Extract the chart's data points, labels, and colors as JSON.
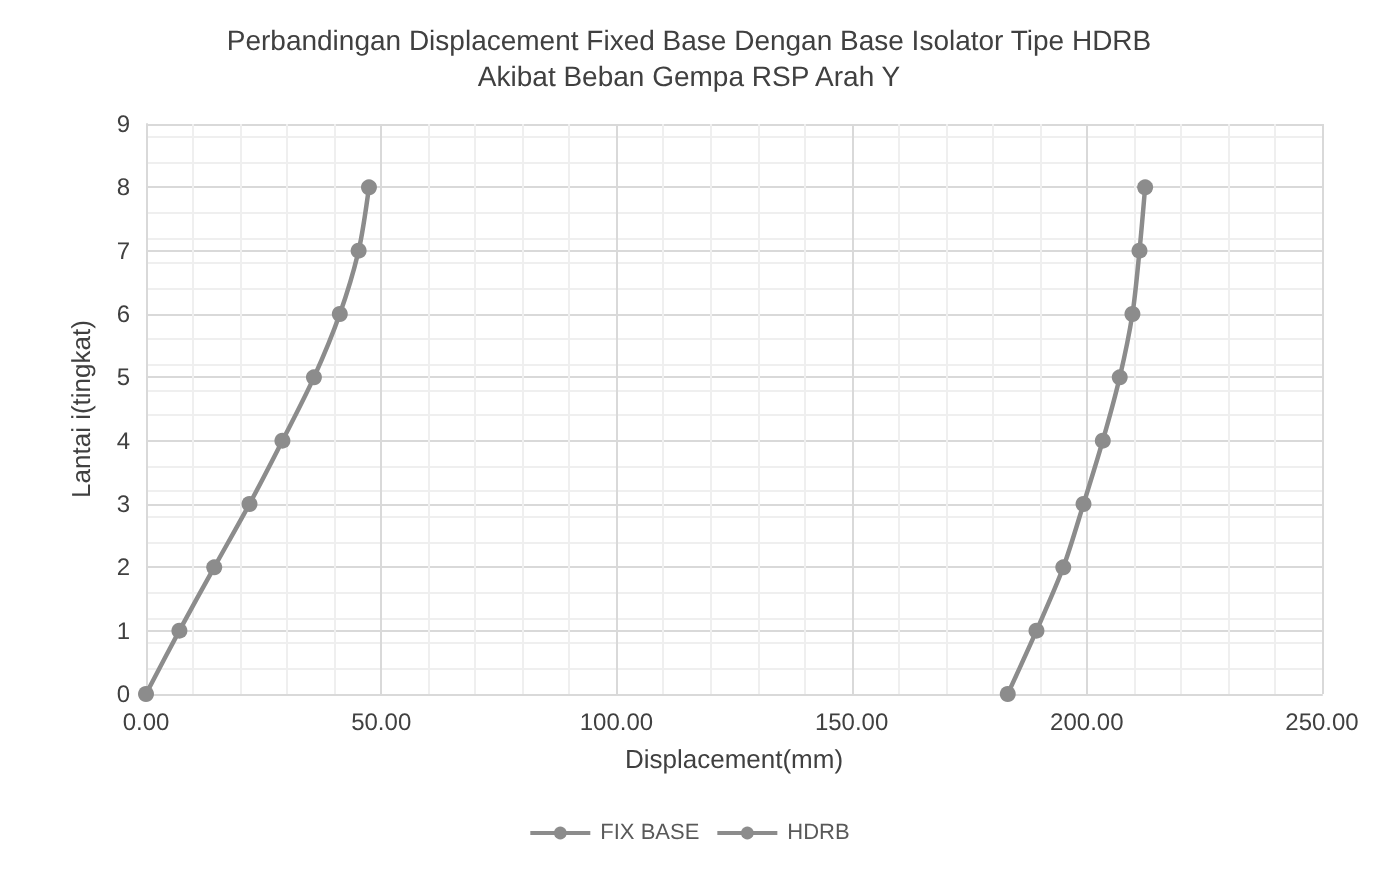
{
  "chart_data": {
    "type": "line",
    "title": "Perbandingan Displacement Fixed Base Dengan Base Isolator Tipe HDRB",
    "subtitle": "Akibat Beban Gempa RSP Arah Y",
    "xlabel": "Displacement(mm)",
    "ylabel": "Lantai i(tingkat)",
    "series": [
      {
        "name": "FIX BASE",
        "color": "#8c8c8c",
        "x": [
          0,
          7.1,
          14.5,
          22,
          29,
          35.7,
          41.2,
          45.2,
          47.4
        ],
        "values": [
          0,
          1,
          2,
          3,
          4,
          5,
          6,
          7,
          8
        ]
      },
      {
        "name": "HDRB",
        "color": "#8c8c8c",
        "x": [
          183.2,
          189.3,
          195,
          199.3,
          203.4,
          207,
          209.7,
          211.2,
          212.4
        ],
        "values": [
          0,
          1,
          2,
          3,
          4,
          5,
          6,
          7,
          8
        ]
      }
    ],
    "xlim": [
      0,
      250
    ],
    "xticks": [
      {
        "value": 0,
        "label": "0.00"
      },
      {
        "value": 50,
        "label": "50.00"
      },
      {
        "value": 100,
        "label": "100.00"
      },
      {
        "value": 150,
        "label": "150.00"
      },
      {
        "value": 200,
        "label": "200.00"
      },
      {
        "value": 250,
        "label": "250.00"
      }
    ],
    "ylim": [
      0,
      9
    ],
    "yticks": [
      0,
      1,
      2,
      3,
      4,
      5,
      6,
      7,
      8,
      9
    ],
    "grid": true,
    "legend": "bottom",
    "marker": "circle",
    "line_style": "solid"
  }
}
